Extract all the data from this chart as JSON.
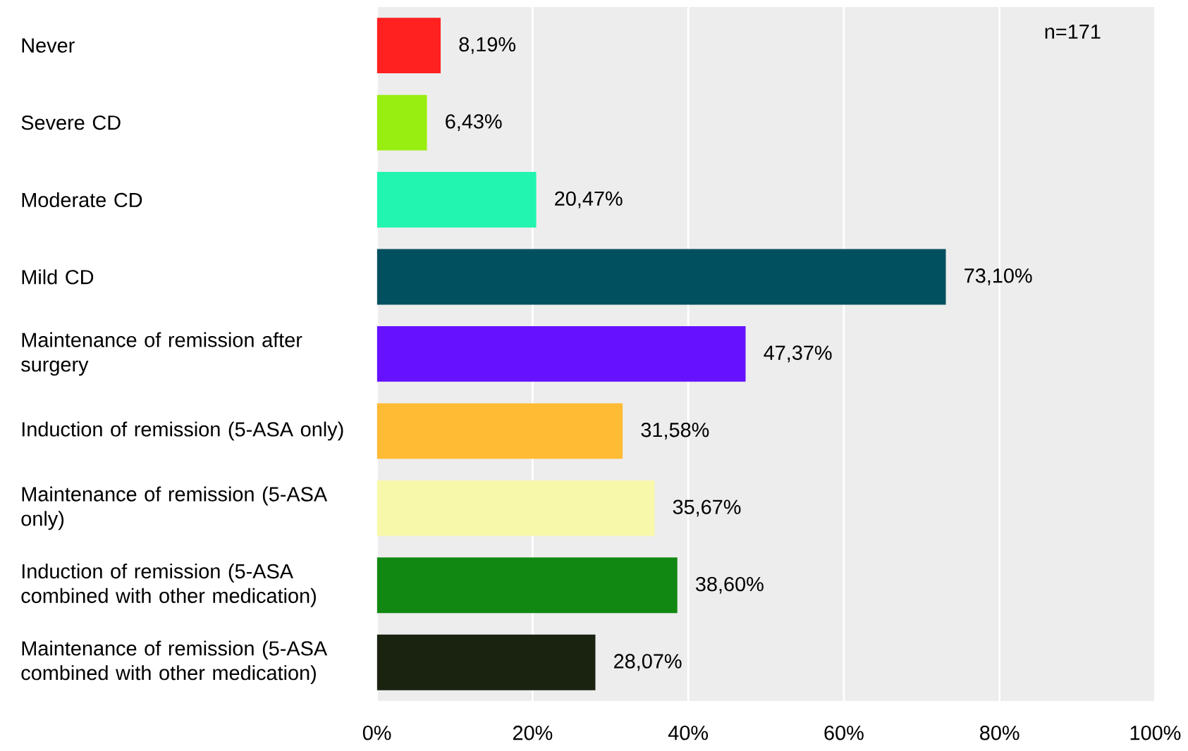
{
  "chart_data": {
    "type": "bar",
    "orientation": "horizontal",
    "categories": [
      "Never",
      "Severe CD",
      "Moderate CD",
      "Mild CD",
      "Maintenance of remission after surgery",
      "Induction of remission (5-ASA only)",
      "Maintenance of remission (5-ASA only)",
      "Induction of remission (5-ASA combined with other medication)",
      "Maintenance of remission (5-ASA combined with other medication)"
    ],
    "values": [
      8.19,
      6.43,
      20.47,
      73.1,
      47.37,
      31.58,
      35.67,
      38.6,
      28.07
    ],
    "value_labels": [
      "8,19%",
      "6,43%",
      "20,47%",
      "73,10%",
      "47,37%",
      "31,58%",
      "35,67%",
      "38,60%",
      "28,07%"
    ],
    "colors": [
      "#ff2020",
      "#99ee11",
      "#22f5b0",
      "#005060",
      "#6611ff",
      "#ffbb33",
      "#f8f8aa",
      "#118811",
      "#1a2210"
    ],
    "xlim": [
      0,
      100
    ],
    "xticks": [
      {
        "value": 0,
        "label": "0%"
      },
      {
        "value": 20,
        "label": "20%"
      },
      {
        "value": 40,
        "label": "40%"
      },
      {
        "value": 60,
        "label": "60%"
      },
      {
        "value": 80,
        "label": "80%"
      },
      {
        "value": 100,
        "label": "100%"
      }
    ],
    "grid": "x",
    "annotations": [
      "n=171"
    ]
  }
}
